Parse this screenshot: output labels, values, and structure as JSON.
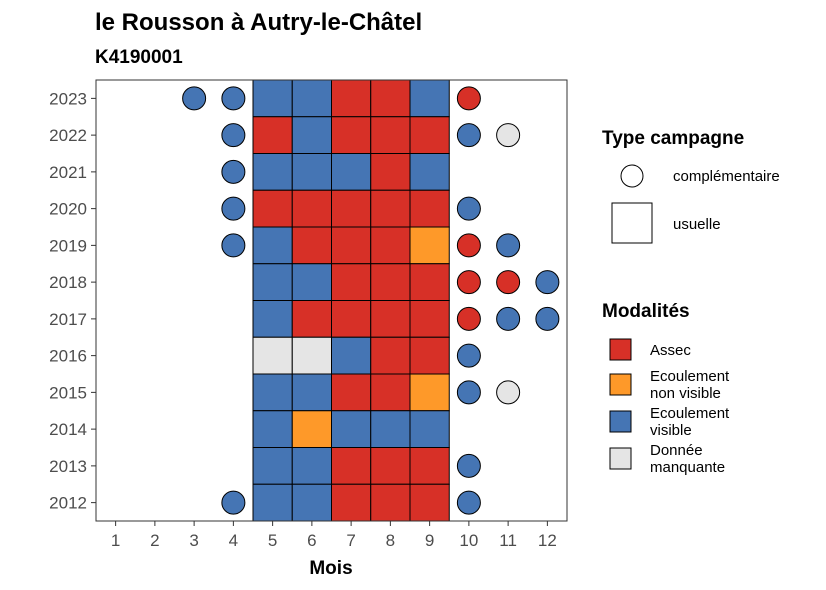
{
  "chart_data": {
    "type": "heatmap",
    "title": "le Rousson à Autry-le-Châtel",
    "subtitle": "K4190001",
    "xlabel": "Mois",
    "ylabel": "",
    "x_ticks": [
      1,
      2,
      3,
      4,
      5,
      6,
      7,
      8,
      9,
      10,
      11,
      12
    ],
    "y_ticks": [
      2012,
      2013,
      2014,
      2015,
      2016,
      2017,
      2018,
      2019,
      2020,
      2021,
      2022,
      2023
    ],
    "xlim": [
      0.5,
      12.5
    ],
    "ylim": [
      2011.5,
      2023.5
    ],
    "grid": false,
    "legend_position": "right",
    "modalities": [
      {
        "key": "assec",
        "label": "Assec",
        "color": "#d73027"
      },
      {
        "key": "ecoul_nv",
        "label": "Ecoulement non visible",
        "color": "#fe9929"
      },
      {
        "key": "ecoul_v",
        "label": "Ecoulement visible",
        "color": "#4575b4"
      },
      {
        "key": "manquante",
        "label": "Donnée manquante",
        "color": "#e5e5e5"
      }
    ],
    "campaign_types": [
      {
        "key": "complementaire",
        "label": "complémentaire",
        "shape": "circle"
      },
      {
        "key": "usuelle",
        "label": "usuelle",
        "shape": "square"
      }
    ],
    "legend_titles": {
      "campaign": "Type campagne",
      "modality": "Modalités"
    },
    "observations": [
      {
        "year": 2023,
        "month": 3,
        "type": "complementaire",
        "modality": "ecoul_v"
      },
      {
        "year": 2023,
        "month": 4,
        "type": "complementaire",
        "modality": "ecoul_v"
      },
      {
        "year": 2023,
        "month": 5,
        "type": "usuelle",
        "modality": "ecoul_v"
      },
      {
        "year": 2023,
        "month": 6,
        "type": "usuelle",
        "modality": "ecoul_v"
      },
      {
        "year": 2023,
        "month": 7,
        "type": "usuelle",
        "modality": "assec"
      },
      {
        "year": 2023,
        "month": 8,
        "type": "usuelle",
        "modality": "assec"
      },
      {
        "year": 2023,
        "month": 9,
        "type": "usuelle",
        "modality": "ecoul_v"
      },
      {
        "year": 2023,
        "month": 10,
        "type": "complementaire",
        "modality": "assec"
      },
      {
        "year": 2022,
        "month": 4,
        "type": "complementaire",
        "modality": "ecoul_v"
      },
      {
        "year": 2022,
        "month": 5,
        "type": "usuelle",
        "modality": "assec"
      },
      {
        "year": 2022,
        "month": 6,
        "type": "usuelle",
        "modality": "ecoul_v"
      },
      {
        "year": 2022,
        "month": 7,
        "type": "usuelle",
        "modality": "assec"
      },
      {
        "year": 2022,
        "month": 8,
        "type": "usuelle",
        "modality": "assec"
      },
      {
        "year": 2022,
        "month": 9,
        "type": "usuelle",
        "modality": "assec"
      },
      {
        "year": 2022,
        "month": 10,
        "type": "complementaire",
        "modality": "ecoul_v"
      },
      {
        "year": 2022,
        "month": 11,
        "type": "complementaire",
        "modality": "manquante"
      },
      {
        "year": 2021,
        "month": 4,
        "type": "complementaire",
        "modality": "ecoul_v"
      },
      {
        "year": 2021,
        "month": 5,
        "type": "usuelle",
        "modality": "ecoul_v"
      },
      {
        "year": 2021,
        "month": 6,
        "type": "usuelle",
        "modality": "ecoul_v"
      },
      {
        "year": 2021,
        "month": 7,
        "type": "usuelle",
        "modality": "ecoul_v"
      },
      {
        "year": 2021,
        "month": 8,
        "type": "usuelle",
        "modality": "assec"
      },
      {
        "year": 2021,
        "month": 9,
        "type": "usuelle",
        "modality": "ecoul_v"
      },
      {
        "year": 2020,
        "month": 4,
        "type": "complementaire",
        "modality": "ecoul_v"
      },
      {
        "year": 2020,
        "month": 5,
        "type": "usuelle",
        "modality": "assec"
      },
      {
        "year": 2020,
        "month": 6,
        "type": "usuelle",
        "modality": "assec"
      },
      {
        "year": 2020,
        "month": 7,
        "type": "usuelle",
        "modality": "assec"
      },
      {
        "year": 2020,
        "month": 8,
        "type": "usuelle",
        "modality": "assec"
      },
      {
        "year": 2020,
        "month": 9,
        "type": "usuelle",
        "modality": "assec"
      },
      {
        "year": 2020,
        "month": 10,
        "type": "complementaire",
        "modality": "ecoul_v"
      },
      {
        "year": 2019,
        "month": 4,
        "type": "complementaire",
        "modality": "ecoul_v"
      },
      {
        "year": 2019,
        "month": 5,
        "type": "usuelle",
        "modality": "ecoul_v"
      },
      {
        "year": 2019,
        "month": 6,
        "type": "usuelle",
        "modality": "assec"
      },
      {
        "year": 2019,
        "month": 7,
        "type": "usuelle",
        "modality": "assec"
      },
      {
        "year": 2019,
        "month": 8,
        "type": "usuelle",
        "modality": "assec"
      },
      {
        "year": 2019,
        "month": 9,
        "type": "usuelle",
        "modality": "ecoul_nv"
      },
      {
        "year": 2019,
        "month": 10,
        "type": "complementaire",
        "modality": "assec"
      },
      {
        "year": 2019,
        "month": 11,
        "type": "complementaire",
        "modality": "ecoul_v"
      },
      {
        "year": 2018,
        "month": 5,
        "type": "usuelle",
        "modality": "ecoul_v"
      },
      {
        "year": 2018,
        "month": 6,
        "type": "usuelle",
        "modality": "ecoul_v"
      },
      {
        "year": 2018,
        "month": 7,
        "type": "usuelle",
        "modality": "assec"
      },
      {
        "year": 2018,
        "month": 8,
        "type": "usuelle",
        "modality": "assec"
      },
      {
        "year": 2018,
        "month": 9,
        "type": "usuelle",
        "modality": "assec"
      },
      {
        "year": 2018,
        "month": 10,
        "type": "complementaire",
        "modality": "assec"
      },
      {
        "year": 2018,
        "month": 11,
        "type": "complementaire",
        "modality": "assec"
      },
      {
        "year": 2018,
        "month": 12,
        "type": "complementaire",
        "modality": "ecoul_v"
      },
      {
        "year": 2017,
        "month": 5,
        "type": "usuelle",
        "modality": "ecoul_v"
      },
      {
        "year": 2017,
        "month": 6,
        "type": "usuelle",
        "modality": "assec"
      },
      {
        "year": 2017,
        "month": 7,
        "type": "usuelle",
        "modality": "assec"
      },
      {
        "year": 2017,
        "month": 8,
        "type": "usuelle",
        "modality": "assec"
      },
      {
        "year": 2017,
        "month": 9,
        "type": "usuelle",
        "modality": "assec"
      },
      {
        "year": 2017,
        "month": 10,
        "type": "complementaire",
        "modality": "assec"
      },
      {
        "year": 2017,
        "month": 11,
        "type": "complementaire",
        "modality": "ecoul_v"
      },
      {
        "year": 2017,
        "month": 12,
        "type": "complementaire",
        "modality": "ecoul_v"
      },
      {
        "year": 2016,
        "month": 5,
        "type": "usuelle",
        "modality": "manquante"
      },
      {
        "year": 2016,
        "month": 6,
        "type": "usuelle",
        "modality": "manquante"
      },
      {
        "year": 2016,
        "month": 7,
        "type": "usuelle",
        "modality": "ecoul_v"
      },
      {
        "year": 2016,
        "month": 8,
        "type": "usuelle",
        "modality": "assec"
      },
      {
        "year": 2016,
        "month": 9,
        "type": "usuelle",
        "modality": "assec"
      },
      {
        "year": 2016,
        "month": 10,
        "type": "complementaire",
        "modality": "ecoul_v"
      },
      {
        "year": 2015,
        "month": 5,
        "type": "usuelle",
        "modality": "ecoul_v"
      },
      {
        "year": 2015,
        "month": 6,
        "type": "usuelle",
        "modality": "ecoul_v"
      },
      {
        "year": 2015,
        "month": 7,
        "type": "usuelle",
        "modality": "assec"
      },
      {
        "year": 2015,
        "month": 8,
        "type": "usuelle",
        "modality": "assec"
      },
      {
        "year": 2015,
        "month": 9,
        "type": "usuelle",
        "modality": "ecoul_nv"
      },
      {
        "year": 2015,
        "month": 10,
        "type": "complementaire",
        "modality": "ecoul_v"
      },
      {
        "year": 2015,
        "month": 11,
        "type": "complementaire",
        "modality": "manquante"
      },
      {
        "year": 2014,
        "month": 5,
        "type": "usuelle",
        "modality": "ecoul_v"
      },
      {
        "year": 2014,
        "month": 6,
        "type": "usuelle",
        "modality": "ecoul_nv"
      },
      {
        "year": 2014,
        "month": 7,
        "type": "usuelle",
        "modality": "ecoul_v"
      },
      {
        "year": 2014,
        "month": 8,
        "type": "usuelle",
        "modality": "ecoul_v"
      },
      {
        "year": 2014,
        "month": 9,
        "type": "usuelle",
        "modality": "ecoul_v"
      },
      {
        "year": 2013,
        "month": 5,
        "type": "usuelle",
        "modality": "ecoul_v"
      },
      {
        "year": 2013,
        "month": 6,
        "type": "usuelle",
        "modality": "ecoul_v"
      },
      {
        "year": 2013,
        "month": 7,
        "type": "usuelle",
        "modality": "assec"
      },
      {
        "year": 2013,
        "month": 8,
        "type": "usuelle",
        "modality": "assec"
      },
      {
        "year": 2013,
        "month": 9,
        "type": "usuelle",
        "modality": "assec"
      },
      {
        "year": 2013,
        "month": 10,
        "type": "complementaire",
        "modality": "ecoul_v"
      },
      {
        "year": 2012,
        "month": 4,
        "type": "complementaire",
        "modality": "ecoul_v"
      },
      {
        "year": 2012,
        "month": 5,
        "type": "usuelle",
        "modality": "ecoul_v"
      },
      {
        "year": 2012,
        "month": 6,
        "type": "usuelle",
        "modality": "ecoul_v"
      },
      {
        "year": 2012,
        "month": 7,
        "type": "usuelle",
        "modality": "assec"
      },
      {
        "year": 2012,
        "month": 8,
        "type": "usuelle",
        "modality": "assec"
      },
      {
        "year": 2012,
        "month": 9,
        "type": "usuelle",
        "modality": "assec"
      },
      {
        "year": 2012,
        "month": 10,
        "type": "complementaire",
        "modality": "ecoul_v"
      }
    ]
  }
}
